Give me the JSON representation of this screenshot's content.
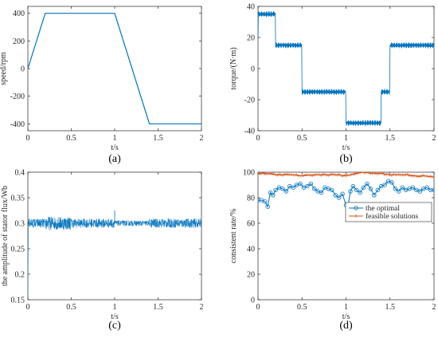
{
  "colors": {
    "blue": "#0072BD",
    "orange": "#D95319",
    "axis": "#262626"
  },
  "chart_data": [
    {
      "id": "a",
      "type": "line",
      "caption": "(a)",
      "xlabel": "t/s",
      "ylabel": "speed/rpm",
      "xlim": [
        0,
        2
      ],
      "ylim": [
        -450,
        450
      ],
      "xticks": [
        0,
        0.5,
        1,
        1.5,
        2
      ],
      "yticks": [
        -400,
        -200,
        0,
        200,
        400
      ],
      "series": [
        {
          "x": [
            0,
            0.2,
            0.5,
            1.0,
            1.4,
            1.5,
            2.0
          ],
          "values": [
            0,
            400,
            400,
            400,
            -400,
            -400,
            -400
          ]
        }
      ]
    },
    {
      "id": "b",
      "type": "line",
      "caption": "(b)",
      "xlabel": "t/s",
      "ylabel": "torque/(N·m)",
      "xlim": [
        0,
        2
      ],
      "ylim": [
        -40,
        40
      ],
      "xticks": [
        0,
        0.5,
        1,
        1.5,
        2
      ],
      "yticks": [
        -40,
        -20,
        0,
        20,
        40
      ],
      "series": [
        {
          "x": [
            0,
            0.2,
            0.5,
            1.0,
            1.4,
            1.5,
            2.0
          ],
          "values": [
            35,
            15,
            -15,
            -35,
            -15,
            15,
            15
          ],
          "ripple": 2
        }
      ]
    },
    {
      "id": "c",
      "type": "line",
      "caption": "(c)",
      "xlabel": "t/s",
      "ylabel": "the amplitude of stator flux/Wb",
      "xlim": [
        0,
        2
      ],
      "ylim": [
        0.15,
        0.4
      ],
      "xticks": [
        0,
        0.5,
        1,
        1.5,
        2
      ],
      "yticks": [
        0.15,
        0.2,
        0.25,
        0.3,
        0.35,
        0.4
      ],
      "series": [
        {
          "level": 0.3,
          "ripple": 0.01
        }
      ]
    },
    {
      "id": "d",
      "type": "line",
      "caption": "(d)",
      "xlabel": "t/s",
      "ylabel": "consistent rate/%",
      "xlim": [
        0,
        2
      ],
      "ylim": [
        0,
        100
      ],
      "xticks": [
        0,
        0.5,
        1,
        1.5,
        2
      ],
      "yticks": [
        0,
        20,
        40,
        60,
        80,
        100
      ],
      "legend": "inside",
      "series": [
        {
          "name": "the optimal",
          "x": [
            0,
            0.04,
            0.08,
            0.11,
            0.14,
            0.17,
            0.2,
            0.24,
            0.28,
            0.32,
            0.36,
            0.4,
            0.44,
            0.48,
            0.52,
            0.56,
            0.6,
            0.64,
            0.68,
            0.72,
            0.76,
            0.8,
            0.84,
            0.88,
            0.92,
            0.96,
            1.0,
            1.02,
            1.05,
            1.08,
            1.12,
            1.16,
            1.2,
            1.24,
            1.28,
            1.32,
            1.36,
            1.4,
            1.44,
            1.48,
            1.52,
            1.56,
            1.6,
            1.64,
            1.68,
            1.72,
            1.76,
            1.8,
            1.84,
            1.88,
            1.92,
            1.96,
            2.0
          ],
          "values": [
            78,
            78,
            77,
            73,
            84,
            82,
            86,
            88,
            87,
            85,
            89,
            88,
            90,
            91,
            88,
            89,
            91,
            87,
            85,
            84,
            88,
            87,
            86,
            82,
            80,
            83,
            74,
            72,
            85,
            89,
            86,
            84,
            88,
            91,
            87,
            82,
            86,
            89,
            90,
            93,
            92,
            87,
            85,
            88,
            86,
            87,
            88,
            86,
            85,
            87,
            88,
            86,
            86
          ]
        },
        {
          "name": "feasible solutions",
          "x": [
            0,
            0.1,
            0.2,
            0.3,
            0.4,
            0.5,
            0.6,
            0.7,
            0.8,
            0.9,
            1.0,
            1.1,
            1.2,
            1.3,
            1.4,
            1.5,
            1.6,
            1.7,
            1.8,
            1.9,
            2.0
          ],
          "values": [
            99,
            99,
            98,
            98,
            98,
            97,
            98,
            98,
            98,
            98,
            97,
            99,
            100,
            99,
            99,
            98,
            98,
            98,
            97,
            97,
            96
          ]
        }
      ]
    }
  ]
}
